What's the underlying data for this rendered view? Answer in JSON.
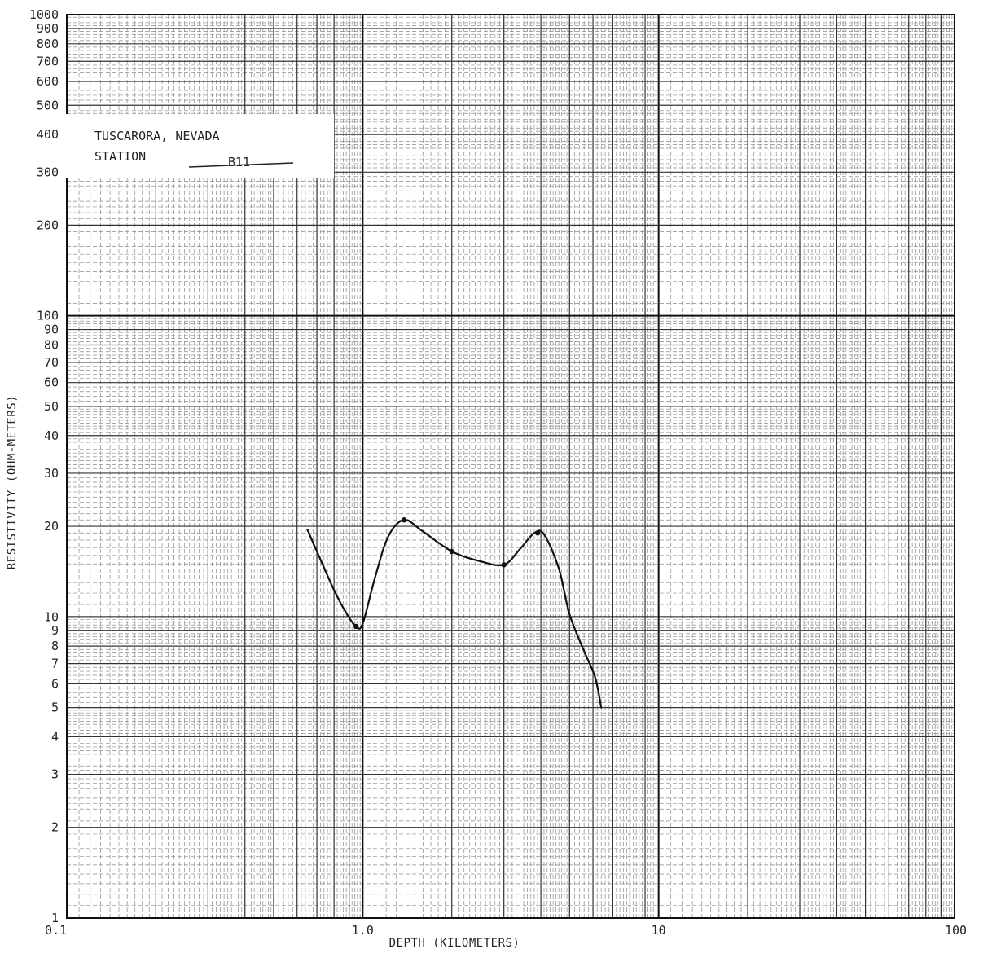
{
  "chart_data": {
    "type": "line",
    "title": "TUSCARORA, NEVADA",
    "station_label": "STATION",
    "station_value": "B11",
    "xlabel": "DEPTH (KILOMETERS)",
    "ylabel": "RESISTIVITY (OHM-METERS)",
    "x_scale": "log",
    "y_scale": "log",
    "xlim": [
      0.1,
      100
    ],
    "ylim": [
      1,
      1000
    ],
    "grid": true,
    "x_tick_labels": [
      {
        "value": 0.1,
        "label": "0.1"
      },
      {
        "value": 1,
        "label": "1.0"
      },
      {
        "value": 10,
        "label": "10"
      },
      {
        "value": 100,
        "label": "100"
      }
    ],
    "y_tick_labels": [
      {
        "value": 1,
        "label": "1"
      },
      {
        "value": 2,
        "label": "2"
      },
      {
        "value": 3,
        "label": "3"
      },
      {
        "value": 4,
        "label": "4"
      },
      {
        "value": 5,
        "label": "5"
      },
      {
        "value": 6,
        "label": "6"
      },
      {
        "value": 7,
        "label": "7"
      },
      {
        "value": 8,
        "label": "8"
      },
      {
        "value": 9,
        "label": "9"
      },
      {
        "value": 10,
        "label": "10"
      },
      {
        "value": 20,
        "label": "20"
      },
      {
        "value": 30,
        "label": "30"
      },
      {
        "value": 40,
        "label": "40"
      },
      {
        "value": 50,
        "label": "50"
      },
      {
        "value": 60,
        "label": "60"
      },
      {
        "value": 70,
        "label": "70"
      },
      {
        "value": 80,
        "label": "80"
      },
      {
        "value": 90,
        "label": "90"
      },
      {
        "value": 100,
        "label": "100"
      },
      {
        "value": 200,
        "label": "200"
      },
      {
        "value": 300,
        "label": "300"
      },
      {
        "value": 400,
        "label": "400"
      },
      {
        "value": 500,
        "label": "500"
      },
      {
        "value": 600,
        "label": "600"
      },
      {
        "value": 700,
        "label": "700"
      },
      {
        "value": 800,
        "label": "800"
      },
      {
        "value": 900,
        "label": "900"
      },
      {
        "value": 1000,
        "label": "1000"
      }
    ],
    "series": [
      {
        "curve": [
          {
            "x": 0.65,
            "y": 19.5
          },
          {
            "x": 0.72,
            "y": 15.5
          },
          {
            "x": 0.8,
            "y": 12.3
          },
          {
            "x": 0.88,
            "y": 10.3
          },
          {
            "x": 0.95,
            "y": 9.3
          },
          {
            "x": 1.0,
            "y": 9.5
          },
          {
            "x": 1.1,
            "y": 13.5
          },
          {
            "x": 1.22,
            "y": 18.5
          },
          {
            "x": 1.38,
            "y": 21
          },
          {
            "x": 1.6,
            "y": 19.2
          },
          {
            "x": 2.0,
            "y": 16.5
          },
          {
            "x": 2.5,
            "y": 15.3
          },
          {
            "x": 3.0,
            "y": 14.9
          },
          {
            "x": 3.4,
            "y": 16.8
          },
          {
            "x": 3.8,
            "y": 19.0
          },
          {
            "x": 4.1,
            "y": 18.8
          },
          {
            "x": 4.6,
            "y": 14.5
          },
          {
            "x": 5.0,
            "y": 10.2
          },
          {
            "x": 5.6,
            "y": 7.7
          },
          {
            "x": 6.1,
            "y": 6.3
          },
          {
            "x": 6.4,
            "y": 5.0
          }
        ],
        "points": [
          {
            "x": 0.95,
            "y": 9.3
          },
          {
            "x": 1.38,
            "y": 21
          },
          {
            "x": 2.0,
            "y": 16.5
          },
          {
            "x": 3.0,
            "y": 14.9
          },
          {
            "x": 3.9,
            "y": 19.0
          }
        ]
      }
    ]
  }
}
